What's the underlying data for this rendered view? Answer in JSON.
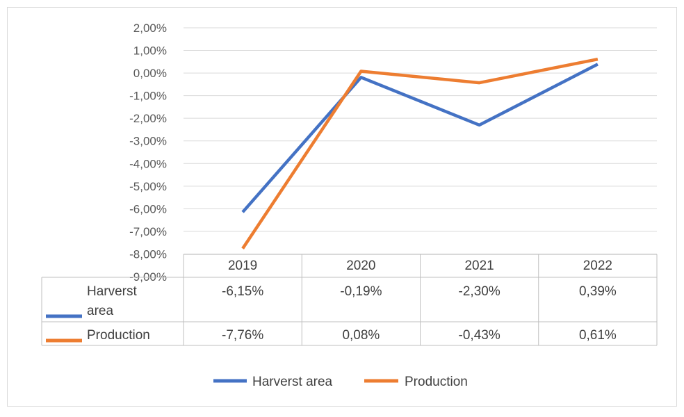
{
  "chart_data": {
    "type": "line",
    "title": "",
    "xlabel": "",
    "ylabel": "",
    "categories": [
      "2019",
      "2020",
      "2021",
      "2022"
    ],
    "ylim": [
      -9,
      2
    ],
    "y_ticks": [
      2,
      1,
      0,
      -1,
      -2,
      -3,
      -4,
      -5,
      -6,
      -7,
      -8,
      -9
    ],
    "y_tick_labels": [
      "2,00%",
      "1,00%",
      "0,00%",
      "-1,00%",
      "-2,00%",
      "-3,00%",
      "-4,00%",
      "-5,00%",
      "-6,00%",
      "-7,00%",
      "-8,00%",
      "-9,00%"
    ],
    "grid": true,
    "legend_position": "bottom",
    "data_table": true,
    "series": [
      {
        "name": "Harverst area",
        "row_label_lines": [
          "Harverst",
          "area"
        ],
        "color": "#4472c4",
        "values": [
          -6.15,
          -0.19,
          -2.3,
          0.39
        ],
        "value_labels": [
          "-6,15%",
          "-0,19%",
          "-2,30%",
          "0,39%"
        ]
      },
      {
        "name": "Production",
        "row_label_lines": [
          "Production"
        ],
        "color": "#ed7d31",
        "values": [
          -7.76,
          0.08,
          -0.43,
          0.61
        ],
        "value_labels": [
          "-7,76%",
          "0,08%",
          "-0,43%",
          "0,61%"
        ]
      }
    ]
  }
}
